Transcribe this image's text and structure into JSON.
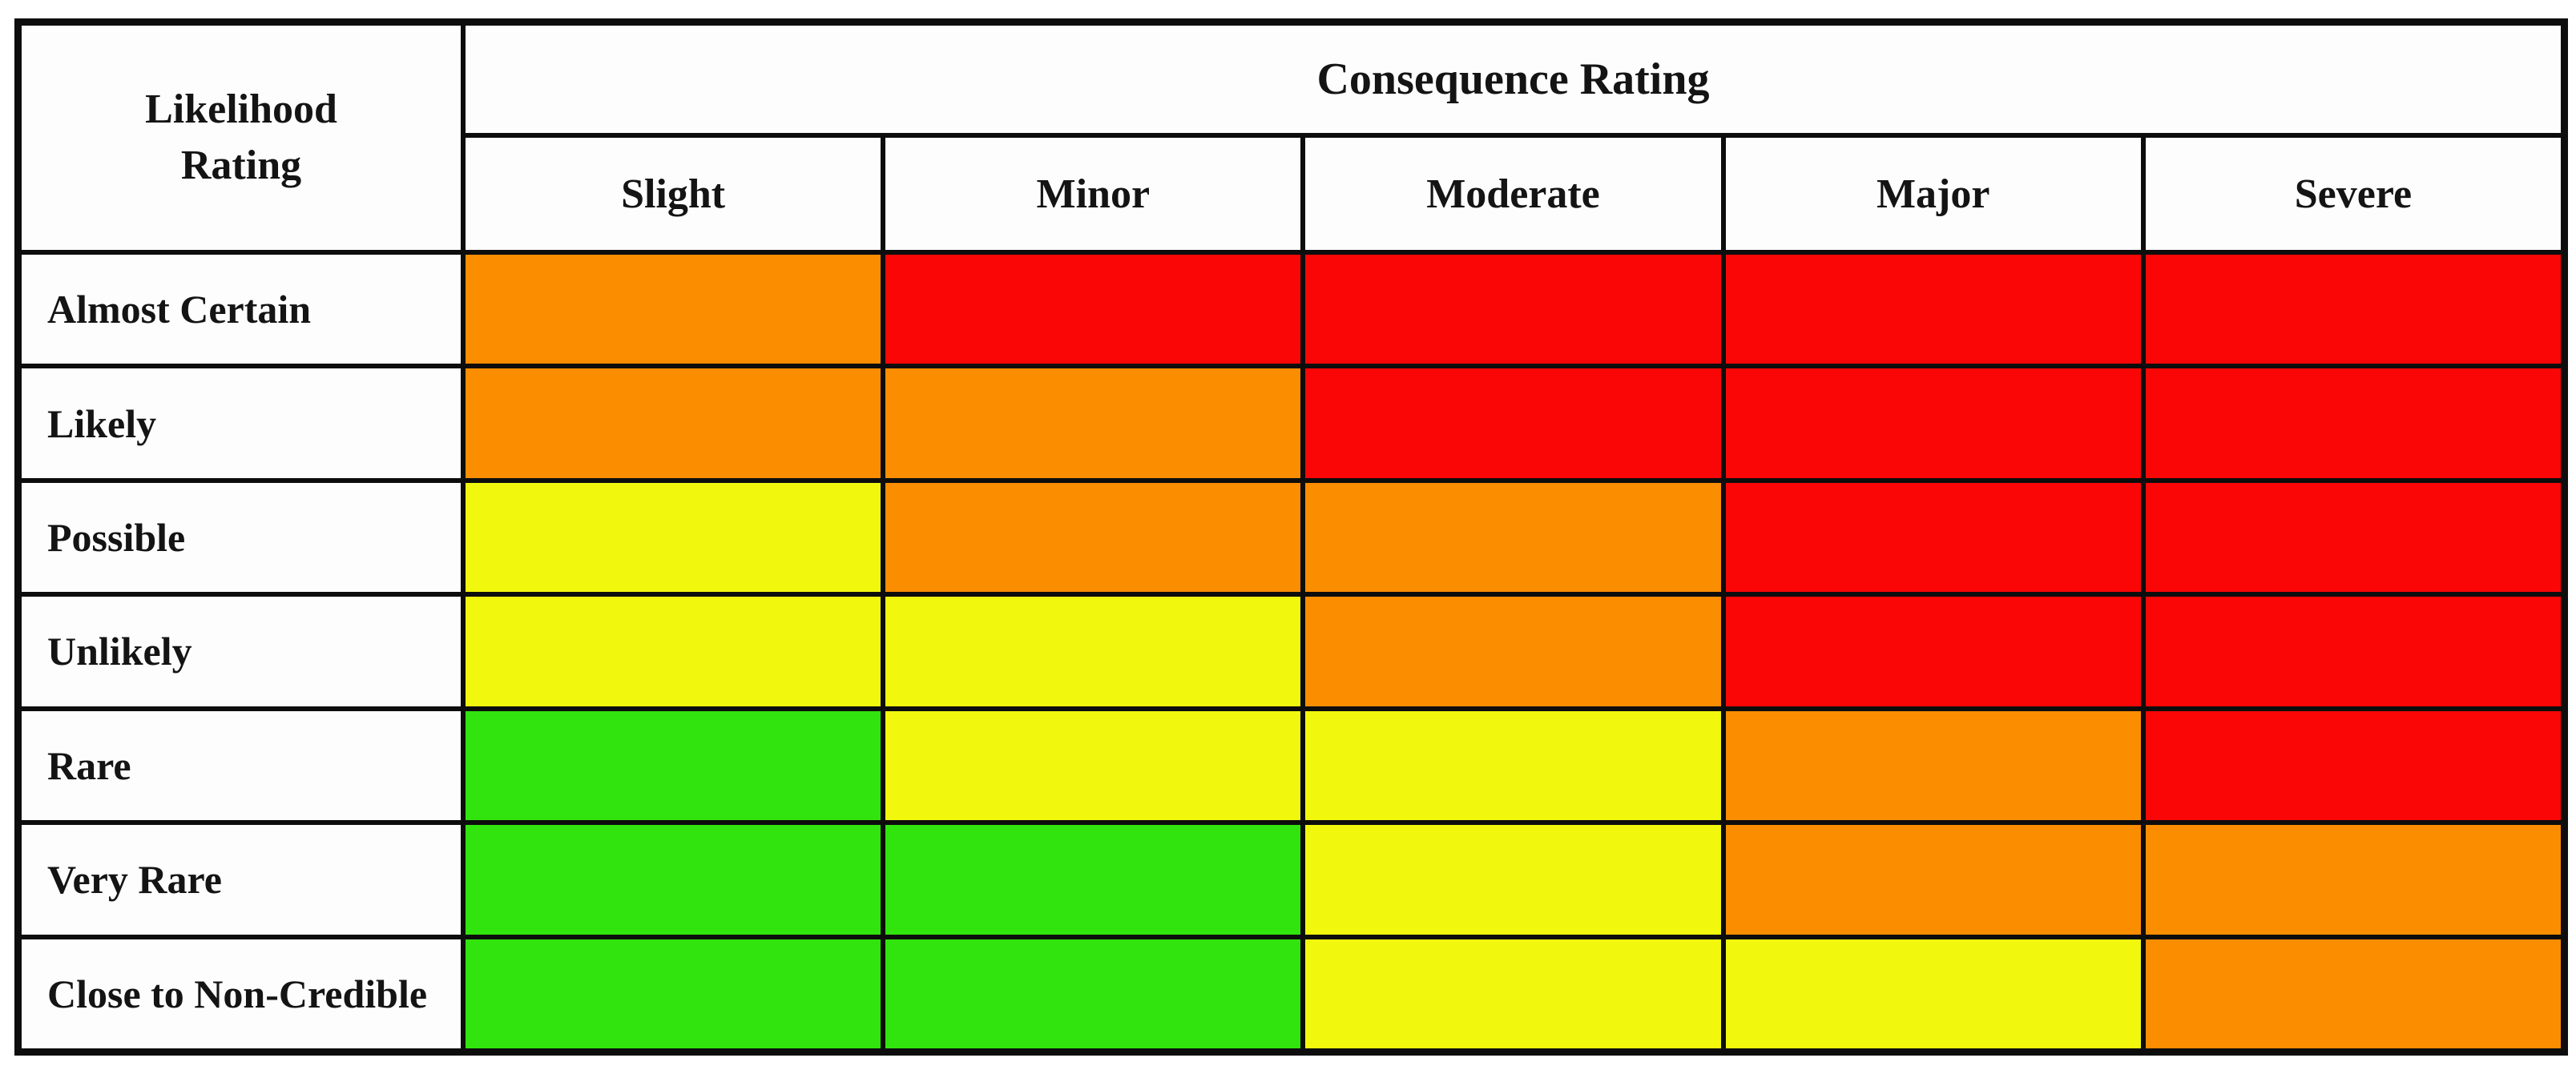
{
  "colors": {
    "red": "#FB0606",
    "orange": "#FA8D00",
    "yellow": "#F1F80D",
    "green": "#31E40D",
    "grid_line": "#0D0D0D",
    "header_bg": "#FDFDFD",
    "text": "#141414"
  },
  "matrix": {
    "likelihood_header": "Likelihood Rating",
    "consequence_header": "Consequence Rating",
    "consequence_levels": [
      "Slight",
      "Minor",
      "Moderate",
      "Major",
      "Severe"
    ],
    "rows": [
      {
        "label": "Almost Certain",
        "cells": [
          "orange",
          "red",
          "red",
          "red",
          "red"
        ]
      },
      {
        "label": "Likely",
        "cells": [
          "orange",
          "orange",
          "red",
          "red",
          "red"
        ]
      },
      {
        "label": "Possible",
        "cells": [
          "yellow",
          "orange",
          "orange",
          "red",
          "red"
        ]
      },
      {
        "label": "Unlikely",
        "cells": [
          "yellow",
          "yellow",
          "orange",
          "red",
          "red"
        ]
      },
      {
        "label": "Rare",
        "cells": [
          "green",
          "yellow",
          "yellow",
          "orange",
          "red"
        ]
      },
      {
        "label": "Very Rare",
        "cells": [
          "green",
          "green",
          "yellow",
          "orange",
          "orange"
        ]
      },
      {
        "label": "Close to Non-Credible",
        "cells": [
          "green",
          "green",
          "yellow",
          "yellow",
          "orange"
        ]
      }
    ]
  },
  "chart_data": {
    "type": "heatmap",
    "title": "",
    "xlabel": "Consequence Rating",
    "ylabel": "Likelihood Rating",
    "x_categories": [
      "Slight",
      "Minor",
      "Moderate",
      "Major",
      "Severe"
    ],
    "y_categories": [
      "Almost Certain",
      "Likely",
      "Possible",
      "Unlikely",
      "Rare",
      "Very Rare",
      "Close to Non-Credible"
    ],
    "values": [
      [
        "orange",
        "red",
        "red",
        "red",
        "red"
      ],
      [
        "orange",
        "orange",
        "red",
        "red",
        "red"
      ],
      [
        "yellow",
        "orange",
        "orange",
        "red",
        "red"
      ],
      [
        "yellow",
        "yellow",
        "orange",
        "red",
        "red"
      ],
      [
        "green",
        "yellow",
        "yellow",
        "orange",
        "red"
      ],
      [
        "green",
        "green",
        "yellow",
        "orange",
        "orange"
      ],
      [
        "green",
        "green",
        "yellow",
        "yellow",
        "orange"
      ]
    ],
    "color_map": {
      "green": "#31E40D",
      "yellow": "#F1F80D",
      "orange": "#FA8D00",
      "red": "#FB0606"
    },
    "legend_position": "none",
    "grid": true
  }
}
